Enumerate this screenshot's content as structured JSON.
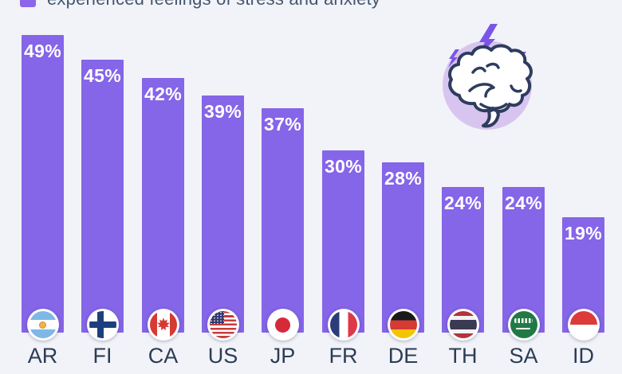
{
  "legend": {
    "label": "experienced feelings of stress and anxiety",
    "swatch_color": "#8b66ea"
  },
  "chart_data": {
    "type": "bar",
    "title": "experienced feelings of stress and anxiety",
    "categories": [
      "AR",
      "FI",
      "CA",
      "US",
      "JP",
      "FR",
      "DE",
      "TH",
      "SA",
      "ID"
    ],
    "values": [
      49,
      45,
      42,
      39,
      37,
      30,
      28,
      24,
      24,
      19
    ],
    "value_labels": [
      "49%",
      "45%",
      "42%",
      "39%",
      "37%",
      "30%",
      "28%",
      "24%",
      "24%",
      "19%"
    ],
    "flags": [
      "argentina",
      "finland",
      "canada",
      "united-states",
      "japan",
      "france",
      "germany",
      "thailand",
      "saudi-arabia",
      "indonesia"
    ],
    "unit": "%",
    "xlabel": "",
    "ylabel": "",
    "ylim": [
      0,
      52
    ],
    "grid": false,
    "legend_position": "top-left",
    "bar_color": "#8565e8",
    "value_label_color": "#ffffff",
    "category_label_color": "#2c3c55"
  },
  "illustration": {
    "name": "brain-with-lightning-bolts",
    "circle_color": "#d8c5ef",
    "bolt_color": "#7b55e8",
    "brain_fill": "#ffffff",
    "brain_outline": "#2e3c5e"
  }
}
